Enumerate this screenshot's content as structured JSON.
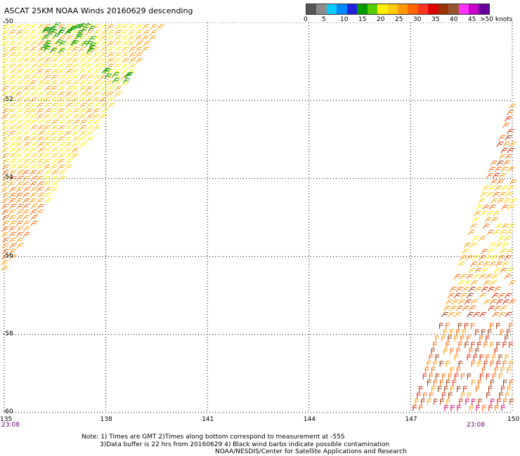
{
  "title": "ASCAT 25KM NOAA Winds 20160629 descending",
  "legend": {
    "colors": [
      "#555555",
      "#8c8c8c",
      "#00ccff",
      "#0088ff",
      "#2222dd",
      "#009900",
      "#55cc00",
      "#ffee00",
      "#ffcc00",
      "#ff9900",
      "#ff6600",
      "#ff3322",
      "#dd0000",
      "#993300",
      "#995533",
      "#ff33ff",
      "#cc00cc",
      "#660099"
    ],
    "labels": [
      "0",
      "5",
      "10",
      "15",
      "20",
      "25",
      "30",
      "35",
      "40",
      "45",
      ">50 knots"
    ],
    "label_values": [
      0,
      5,
      10,
      15,
      20,
      25,
      30,
      35,
      40,
      45,
      50
    ]
  },
  "map": {
    "lon_labels": [
      "135",
      "138",
      "141",
      "144",
      "147",
      "150"
    ],
    "lon_values": [
      135,
      138,
      141,
      144,
      147,
      150
    ],
    "lat_labels": [
      "-50",
      "-52",
      "-54",
      "-56",
      "-58",
      "-60"
    ],
    "lat_values": [
      -50,
      -52,
      -54,
      -56,
      -58,
      -60
    ],
    "lon_range": [
      135,
      150
    ],
    "lat_range": [
      -50,
      -60
    ],
    "grid": "dotted",
    "barb_colors": {
      "green": "#009900",
      "yellow": "#ffee00",
      "yellow_orange": "#ffcc00",
      "orange": "#ff9900",
      "dark_orange": "#ff6600",
      "red": "#dd2200",
      "brown": "#993300",
      "magenta": "#cc0066"
    }
  },
  "times": {
    "left": "23:08",
    "right": "23:08"
  },
  "notes": {
    "line1": "Note: 1) Times are GMT 2)Times along bottom correspond to measurement at -55S",
    "line2": "3)Data buffer is 22 hrs from 20160629 4) Black wind barbs indicate possible contamination",
    "line3": "NOAA/NESDIS/Center for Satellite Applications and Research"
  }
}
